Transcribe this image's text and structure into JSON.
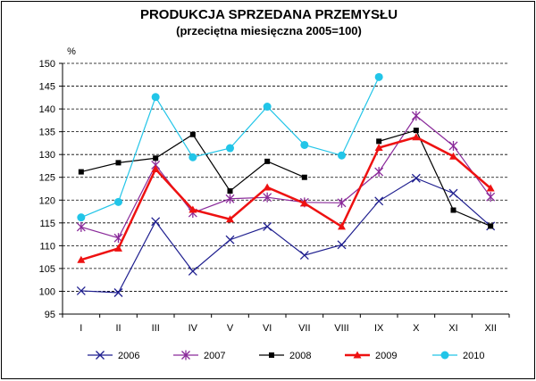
{
  "chart_data": {
    "type": "line",
    "title": "PRODUKCJA SPRZEDANA PRZEMYSŁU",
    "subtitle": "(przeciętna miesięczna 2005=100)",
    "xlabel": "",
    "ylabel": "%",
    "ylim": [
      95,
      150
    ],
    "yticks": [
      95,
      100,
      105,
      110,
      115,
      120,
      125,
      130,
      135,
      140,
      145,
      150
    ],
    "grid": "horizontal dashed",
    "legend_position": "bottom",
    "categories": [
      "I",
      "II",
      "III",
      "IV",
      "V",
      "VI",
      "VII",
      "VIII",
      "IX",
      "X",
      "XI",
      "XII"
    ],
    "series": [
      {
        "name": "2006",
        "color": "#1f1f8f",
        "marker": "x",
        "values": [
          100.1,
          99.7,
          115.3,
          104.4,
          111.3,
          114.2,
          107.9,
          110.2,
          119.8,
          124.8,
          121.5,
          114.3
        ]
      },
      {
        "name": "2007",
        "color": "#8a2a9a",
        "marker": "star",
        "values": [
          114.1,
          111.7,
          127.7,
          117.2,
          120.3,
          120.6,
          119.5,
          119.4,
          126.2,
          138.5,
          131.9,
          120.7
        ]
      },
      {
        "name": "2008",
        "color": "#000000",
        "marker": "square",
        "values": [
          126.2,
          128.2,
          129.2,
          134.4,
          122.0,
          128.5,
          125.0,
          null,
          132.9,
          135.3,
          117.8,
          114.3
        ]
      },
      {
        "name": "2009",
        "color": "#ee1111",
        "marker": "triangle",
        "values": [
          106.9,
          109.4,
          126.8,
          117.9,
          115.8,
          122.8,
          119.3,
          114.2,
          131.5,
          133.8,
          129.6,
          122.6
        ]
      },
      {
        "name": "2010",
        "color": "#22c5e8",
        "marker": "circle",
        "values": [
          116.2,
          119.6,
          142.6,
          129.4,
          131.4,
          140.5,
          132.1,
          129.8,
          147.0,
          null,
          null,
          null
        ]
      }
    ]
  }
}
